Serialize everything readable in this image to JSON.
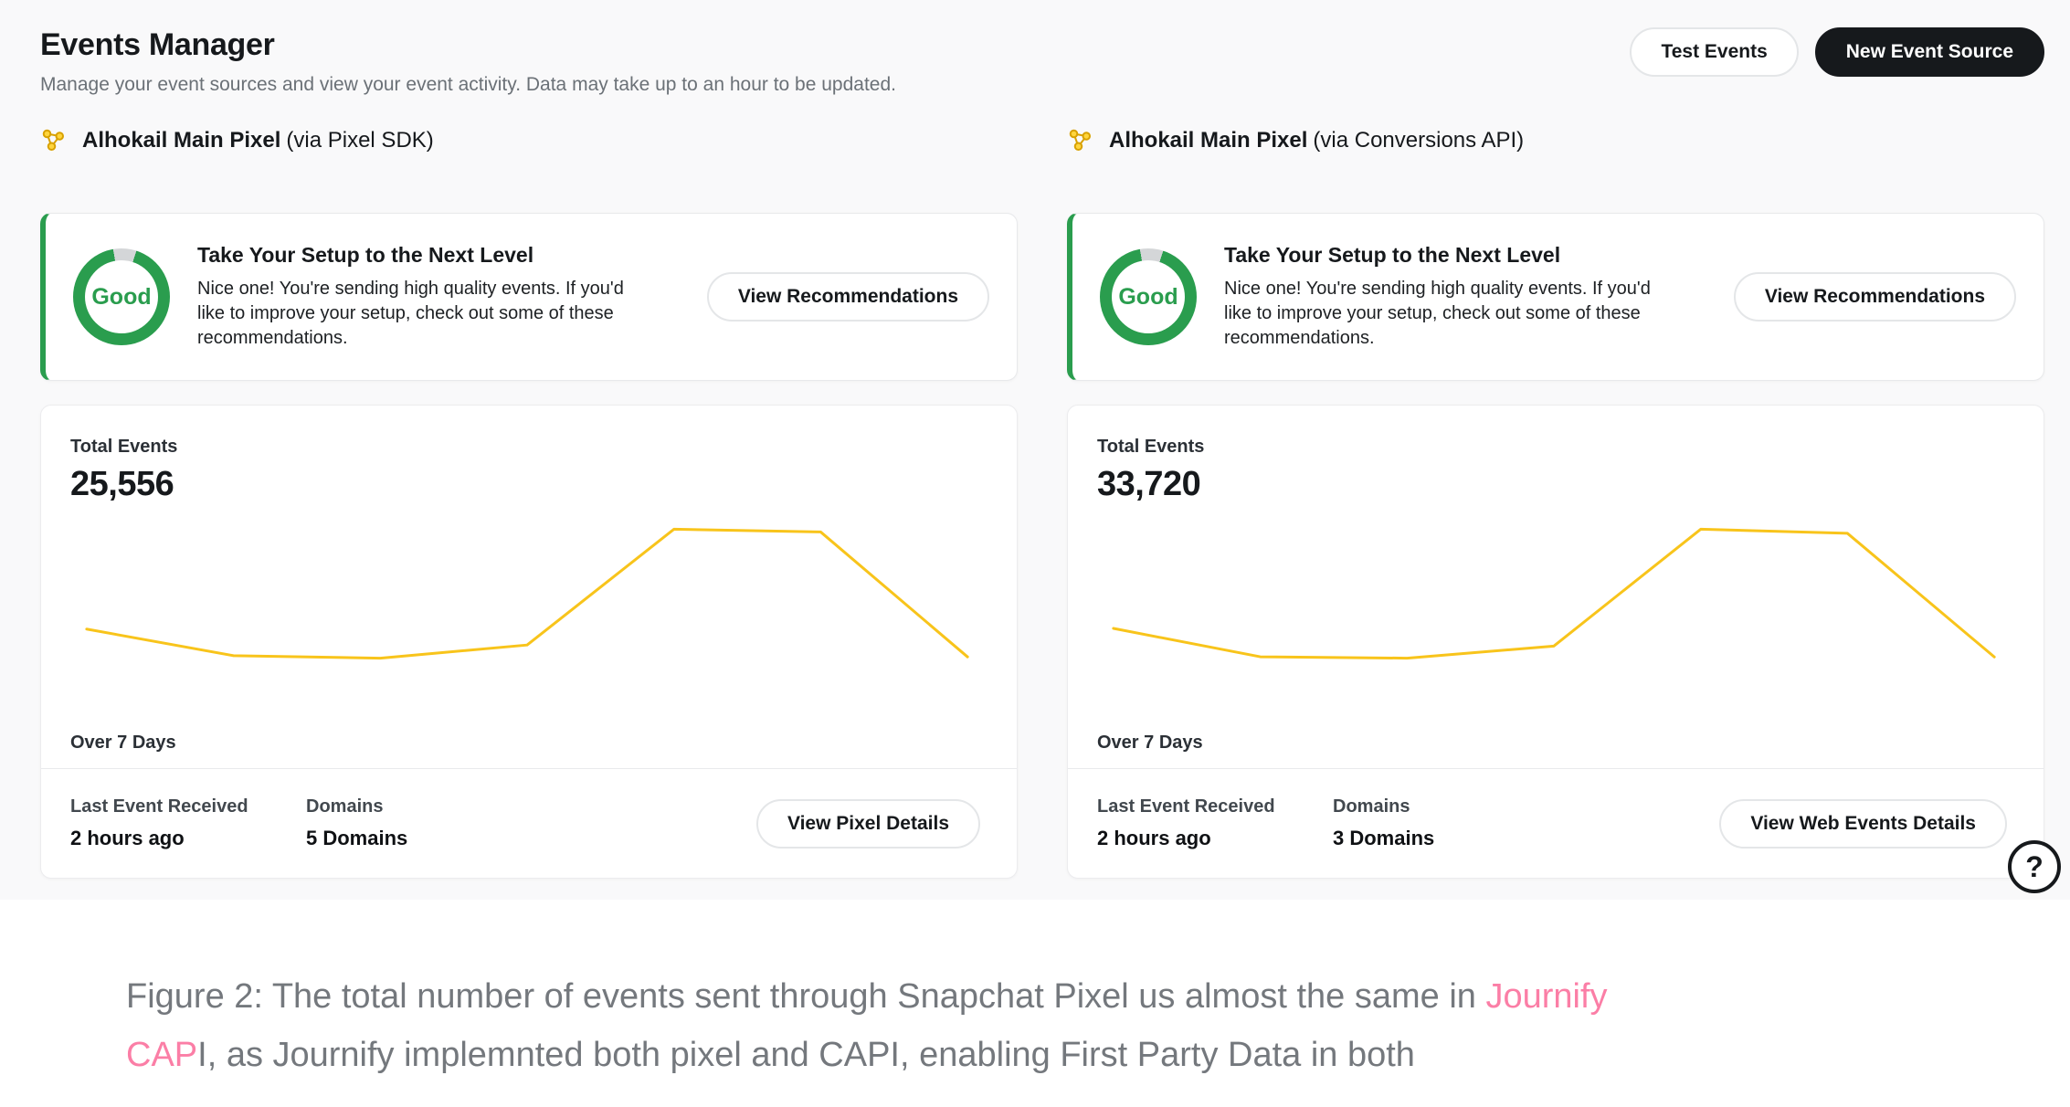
{
  "header": {
    "title": "Events Manager",
    "subtitle": "Manage your event sources and view your event activity. Data may take up to an hour to be updated.",
    "test_events_label": "Test Events",
    "new_event_source_label": "New Event Source"
  },
  "sources": [
    {
      "name": "Alhokail Main Pixel",
      "via": "(via Pixel SDK)",
      "quality": {
        "badge": "Good",
        "title": "Take Your Setup to the Next Level",
        "description": "Nice one! You're sending high quality events. If you'd like to improve your setup, check out some of these recommendations.",
        "button": "View Recommendations"
      },
      "stats": {
        "total_label": "Total Events",
        "total": "25,556",
        "period": "Over 7 Days",
        "last_label": "Last Event Received",
        "last_value": "2 hours ago",
        "domains_label": "Domains",
        "domains_value": "5 Domains",
        "button": "View Pixel Details"
      }
    },
    {
      "name": "Alhokail Main Pixel",
      "via": "(via Conversions API)",
      "quality": {
        "badge": "Good",
        "title": "Take Your Setup to the Next Level",
        "description": "Nice one! You're sending high quality events. If you'd like to improve your setup, check out some of these recommendations.",
        "button": "View Recommendations"
      },
      "stats": {
        "total_label": "Total Events",
        "total": "33,720",
        "period": "Over 7 Days",
        "last_label": "Last Event Received",
        "last_value": "2 hours ago",
        "domains_label": "Domains",
        "domains_value": "3 Domains",
        "button": "View Web Events Details"
      }
    }
  ],
  "help": {
    "glyph": "?"
  },
  "caption": {
    "line1_prefix": "Figure 2: The total number of events sent through Snapchat Pixel us almost the same in ",
    "line1_highlight": "Journify",
    "line2_highlight": "CAP",
    "line2_suffix": "I, as Journify implemnted both pixel and CAPI, enabling First Party Data in both"
  },
  "icons": {
    "source": "pixel-network-icon",
    "help": "question-mark-bubble-icon"
  },
  "colors": {
    "green": "#2A9D4E",
    "yellow": "#F8C41B",
    "pink": "#FB7EA6",
    "dark": "#16191C",
    "gray_text": "#74787D",
    "ring_gray": "#D4D6D8"
  },
  "chart_data": [
    {
      "type": "line",
      "title": "Total Events — Alhokail Main Pixel (via Pixel SDK)",
      "period": "Over 7 Days",
      "x": [
        1,
        2,
        3,
        4,
        5,
        6,
        7
      ],
      "values": [
        3100,
        2050,
        1950,
        2470,
        7050,
        6940,
        2000
      ],
      "total": 25556,
      "line_color": "#F8C41B",
      "grid": false,
      "axes_hidden": true,
      "legend": "none"
    },
    {
      "type": "line",
      "title": "Total Events — Alhokail Main Pixel (via Conversions API)",
      "period": "Over 7 Days",
      "x": [
        1,
        2,
        3,
        4,
        5,
        6,
        7
      ],
      "values": [
        4160,
        2710,
        2640,
        3260,
        9230,
        9020,
        2700
      ],
      "total": 33720,
      "line_color": "#F8C41B",
      "grid": false,
      "axes_hidden": true,
      "legend": "none"
    }
  ]
}
